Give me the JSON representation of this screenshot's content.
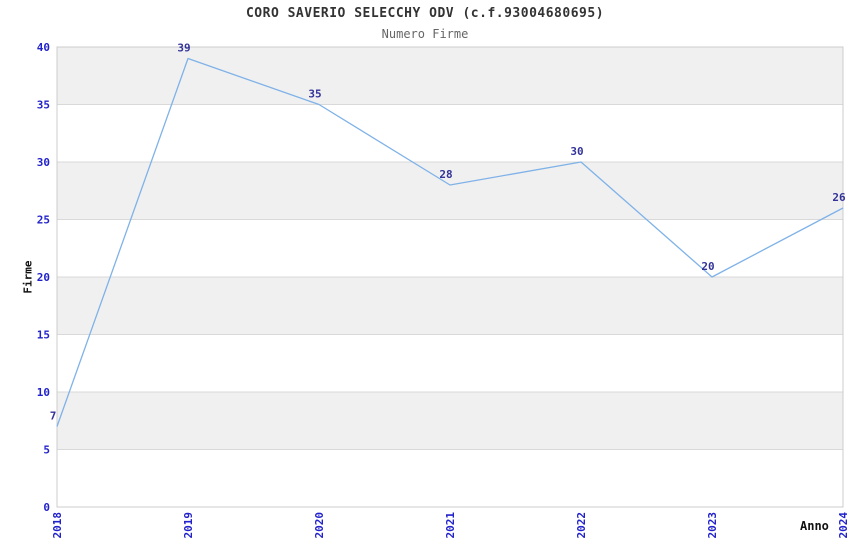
{
  "chart_data": {
    "type": "line",
    "title": "CORO SAVERIO SELECCHY ODV (c.f.93004680695)",
    "subtitle": "Numero Firme",
    "xlabel": "Anno",
    "ylabel": "Firme",
    "x": [
      2018,
      2019,
      2020,
      2021,
      2022,
      2023,
      2024
    ],
    "values": [
      7,
      39,
      35,
      28,
      30,
      20,
      26
    ],
    "ylim": [
      0,
      40
    ],
    "ytick_step": 5,
    "yticks": [
      0,
      5,
      10,
      15,
      20,
      25,
      30,
      35,
      40
    ],
    "grid": "horizontal-bands",
    "legend": "none",
    "point_labels_visible": true,
    "colors": {
      "line": "#7fb2e8",
      "tick_label": "#2222cc",
      "value_label": "#333399",
      "band_fill": "#f0f0f0",
      "grid_line": "#d9d9d9",
      "plot_border": "#cccccc",
      "title": "#333333",
      "subtitle": "#666666",
      "axis_title": "#111111",
      "background": "#ffffff"
    }
  }
}
